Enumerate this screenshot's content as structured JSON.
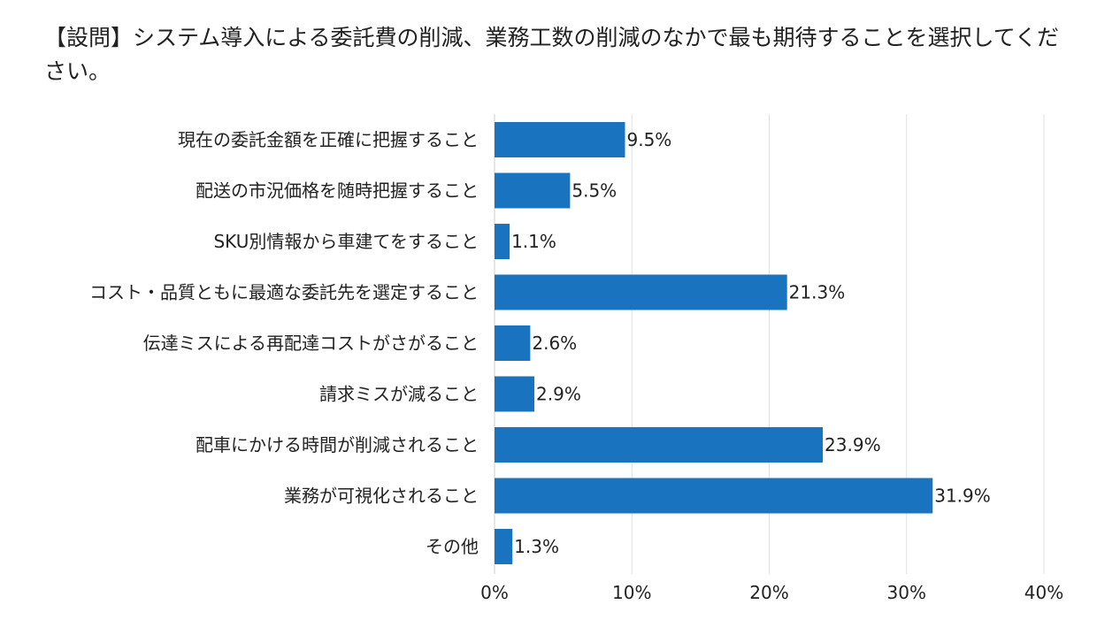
{
  "title": "【設問】システム導入による委託費の削減、業務工数の削減のなかで最も期待することを選択してください。",
  "colors": {
    "bar": "#1a73be",
    "grid": "#e0e0e0",
    "axis": "#cccccc"
  },
  "chart_data": {
    "type": "bar",
    "orientation": "horizontal",
    "title": "【設問】システム導入による委託費の削減、業務工数の削減のなかで最も期待することを選択してください。",
    "categories": [
      "現在の委託金額を正確に把握すること",
      "配送の市況価格を随時把握すること",
      "SKU別情報から車建てをすること",
      "コスト・品質ともに最適な委託先を選定すること",
      "伝達ミスによる再配達コストがさがること",
      "請求ミスが減ること",
      "配車にかける時間が削減されること",
      "業務が可視化されること",
      "その他"
    ],
    "values": [
      9.5,
      5.5,
      1.1,
      21.3,
      2.6,
      2.9,
      23.9,
      31.9,
      1.3
    ],
    "value_labels": [
      "9.5%",
      "5.5%",
      "1.1%",
      "21.3%",
      "2.6%",
      "2.9%",
      "23.9%",
      "31.9%",
      "1.3%"
    ],
    "xticks": [
      "0%",
      "10%",
      "20%",
      "30%",
      "40%"
    ],
    "xlim": [
      0,
      40
    ],
    "grid": true
  }
}
